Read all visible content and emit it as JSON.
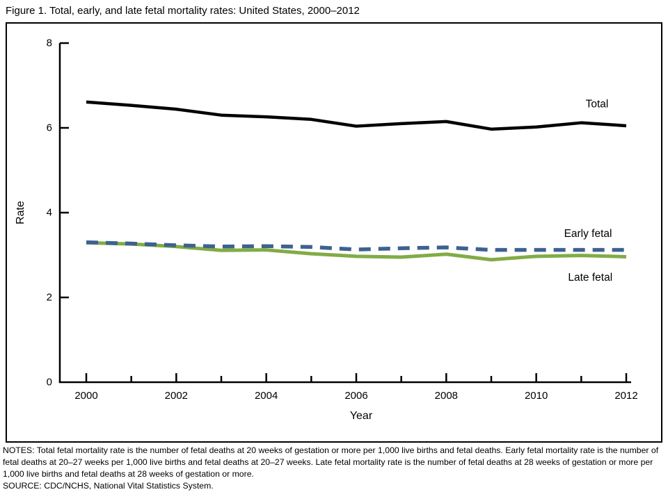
{
  "figure": {
    "title": "Figure 1. Total, early, and late fetal mortality rates: United States, 2000–2012",
    "notes": "NOTES: Total fetal mortality rate is the number of fetal deaths at 20 weeks of gestation or more per 1,000 live births and fetal deaths. Early fetal mortality rate is the number of fetal deaths at 20–27 weeks per 1,000 live births and fetal deaths at 20–27 weeks. Late fetal mortality rate is the number of fetal deaths at 28 weeks of gestation or more per 1,000 live births and fetal deaths at 28 weeks of gestation or more.",
    "source": "SOURCE: CDC/NCHS, National Vital Statistics System."
  },
  "chart_data": {
    "type": "line",
    "title": "Figure 1. Total, early, and late fetal mortality rates: United States, 2000–2012",
    "xlabel": "Year",
    "ylabel": "Rate",
    "ylim": [
      0,
      8
    ],
    "yticks": [
      0,
      2,
      4,
      6,
      8
    ],
    "x": [
      2000,
      2001,
      2002,
      2003,
      2004,
      2005,
      2006,
      2007,
      2008,
      2009,
      2010,
      2011,
      2012
    ],
    "xticks_labeled": [
      2000,
      2002,
      2004,
      2006,
      2008,
      2010,
      2012
    ],
    "grid": false,
    "legend_position": "inline-right-labels",
    "axis_color": "#000000",
    "series": [
      {
        "name": "Total",
        "color": "#000000",
        "style": "solid",
        "width": 4.5,
        "values": [
          6.61,
          6.53,
          6.44,
          6.3,
          6.26,
          6.2,
          6.04,
          6.1,
          6.15,
          5.97,
          6.02,
          6.12,
          6.05
        ]
      },
      {
        "name": "Early fetal",
        "color": "#3e628f",
        "style": "dashed",
        "width": 5.5,
        "values": [
          3.3,
          3.27,
          3.23,
          3.2,
          3.21,
          3.19,
          3.13,
          3.16,
          3.18,
          3.12,
          3.12,
          3.12,
          3.12
        ]
      },
      {
        "name": "Late fetal",
        "color": "#81ac45",
        "style": "solid",
        "width": 5,
        "values": [
          3.29,
          3.26,
          3.2,
          3.11,
          3.12,
          3.03,
          2.97,
          2.95,
          3.02,
          2.89,
          2.97,
          2.99,
          2.96
        ]
      }
    ],
    "inline_labels": [
      {
        "series": "Total",
        "text": "Total",
        "x": 2011.35,
        "y": 6.56
      },
      {
        "series": "Early fetal",
        "text": "Early fetal",
        "x": 2011.15,
        "y": 3.5
      },
      {
        "series": "Late fetal",
        "text": "Late fetal",
        "x": 2011.2,
        "y": 2.47
      }
    ]
  }
}
